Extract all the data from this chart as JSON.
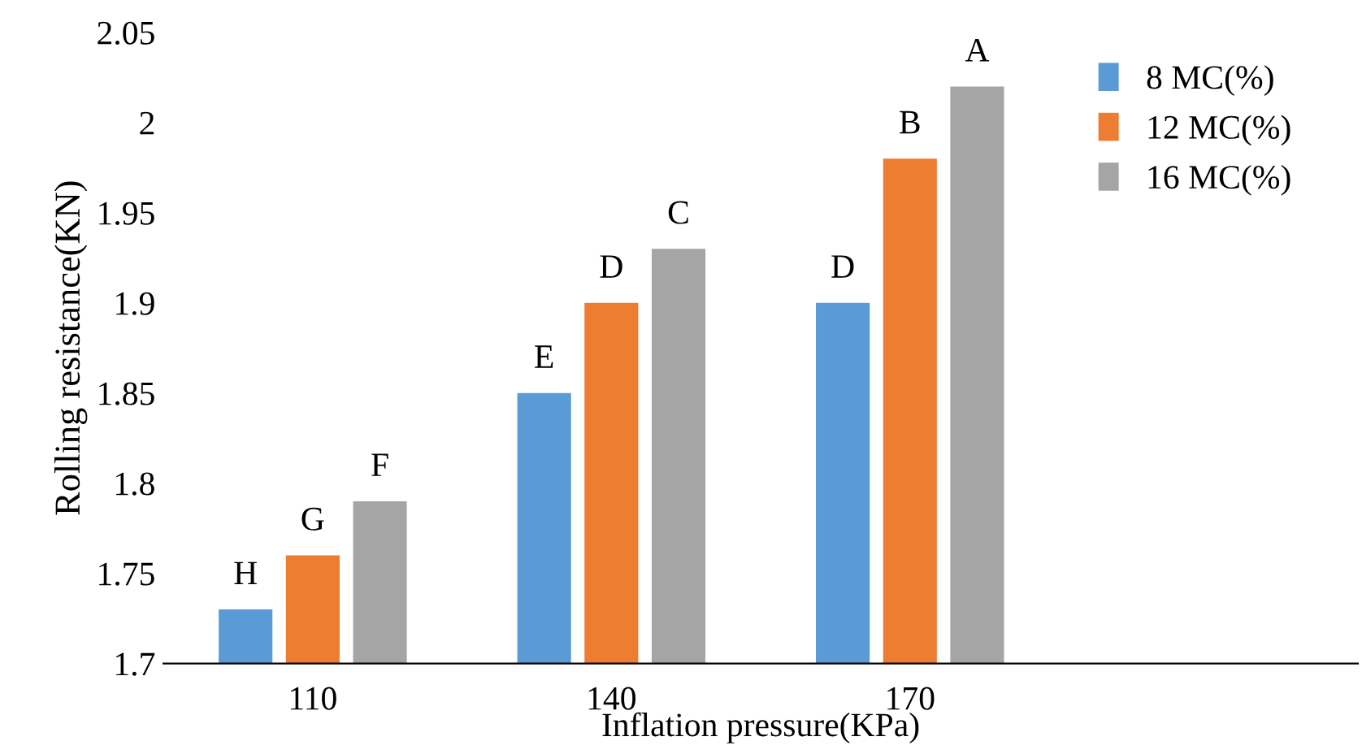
{
  "chart_data": {
    "type": "bar",
    "xlabel": "Inflation pressure(KPa)",
    "ylabel": "Rolling resistance(KN)",
    "categories": [
      "110",
      "140",
      "170",
      null
    ],
    "series": [
      {
        "name": "8 MC(%)",
        "color": "#5b9bd5",
        "values": [
          1.73,
          1.85,
          1.9,
          null
        ],
        "value_labels": [
          "H",
          "E",
          "D",
          null
        ]
      },
      {
        "name": "12 MC(%)",
        "color": "#ed7d31",
        "values": [
          1.76,
          1.9,
          1.98,
          null
        ],
        "value_labels": [
          "G",
          "D",
          "B",
          null
        ]
      },
      {
        "name": "16 MC(%)",
        "color": "#a5a5a5",
        "values": [
          1.79,
          1.93,
          2.02,
          null
        ],
        "value_labels": [
          "F",
          "C",
          "A",
          null
        ]
      }
    ],
    "ylim": [
      1.7,
      2.05
    ],
    "yticks": [
      1.7,
      1.75,
      1.8,
      1.85,
      1.9,
      1.95,
      2,
      2.05
    ],
    "legend": "top right",
    "grid": false
  }
}
